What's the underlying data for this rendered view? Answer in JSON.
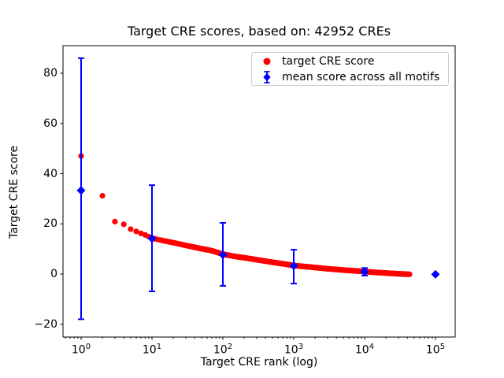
{
  "title": "Target CRE scores, based on: 42952 CREs",
  "xlabel": "Target CRE rank (log)",
  "ylabel": "Target CRE score",
  "colors": {
    "red": "#ff0000",
    "blue": "#0000ff",
    "axis": "#000000",
    "legend_border": "#cccccc",
    "background": "#ffffff"
  },
  "legend": {
    "items": [
      {
        "marker": "red-circle",
        "label": "target CRE score"
      },
      {
        "marker": "blue-diamond-errorbar",
        "label": "mean score across all motifs"
      }
    ]
  },
  "chart_data": {
    "type": "scatter",
    "title": "Target CRE scores, based on: 42952 CREs",
    "xlabel": "Target CRE rank (log)",
    "ylabel": "Target CRE score",
    "x_scale": "log",
    "xlim": [
      0.55,
      190000
    ],
    "ylim": [
      -25,
      91
    ],
    "x_tick_exponents": [
      0,
      1,
      2,
      3,
      4,
      5
    ],
    "y_ticks": [
      -20,
      0,
      20,
      40,
      60,
      80
    ],
    "grid": false,
    "legend_position": "upper right",
    "n_cres": 42952,
    "series": [
      {
        "name": "target CRE score",
        "type": "scatter-dense-curve",
        "color": "#ff0000",
        "max_rank": 42952,
        "anchor_points": [
          [
            1,
            47.0
          ],
          [
            2,
            31.2
          ],
          [
            3,
            20.9
          ],
          [
            4,
            19.8
          ],
          [
            5,
            17.9
          ],
          [
            6,
            17.0
          ],
          [
            7,
            16.2
          ],
          [
            8,
            15.6
          ],
          [
            9,
            14.9
          ],
          [
            10,
            14.3
          ],
          [
            12,
            13.8
          ],
          [
            15,
            13.2
          ],
          [
            20,
            12.5
          ],
          [
            30,
            11.4
          ],
          [
            50,
            10.1
          ],
          [
            70,
            9.3
          ],
          [
            100,
            7.9
          ],
          [
            150,
            7.0
          ],
          [
            200,
            6.5
          ],
          [
            300,
            5.7
          ],
          [
            500,
            4.7
          ],
          [
            700,
            4.1
          ],
          [
            1000,
            3.4
          ],
          [
            2000,
            2.6
          ],
          [
            3000,
            2.1
          ],
          [
            5000,
            1.6
          ],
          [
            7000,
            1.3
          ],
          [
            10000,
            1.0
          ],
          [
            15000,
            0.6
          ],
          [
            20000,
            0.4
          ],
          [
            30000,
            0.1
          ],
          [
            42952,
            -0.1
          ]
        ]
      },
      {
        "name": "mean score across all motifs",
        "type": "errorbar-diamond",
        "color": "#0000ff",
        "points": [
          {
            "x": 1,
            "y": 33.3,
            "lo": -18.0,
            "hi": 86.0
          },
          {
            "x": 10,
            "y": 14.2,
            "lo": -6.9,
            "hi": 35.4
          },
          {
            "x": 100,
            "y": 7.7,
            "lo": -4.7,
            "hi": 20.4
          },
          {
            "x": 1000,
            "y": 3.3,
            "lo": -3.8,
            "hi": 9.7
          },
          {
            "x": 10000,
            "y": 0.9,
            "lo": -0.6,
            "hi": 2.4
          },
          {
            "x": 100000,
            "y": -0.1,
            "lo": -0.1,
            "hi": -0.1
          }
        ]
      }
    ]
  }
}
